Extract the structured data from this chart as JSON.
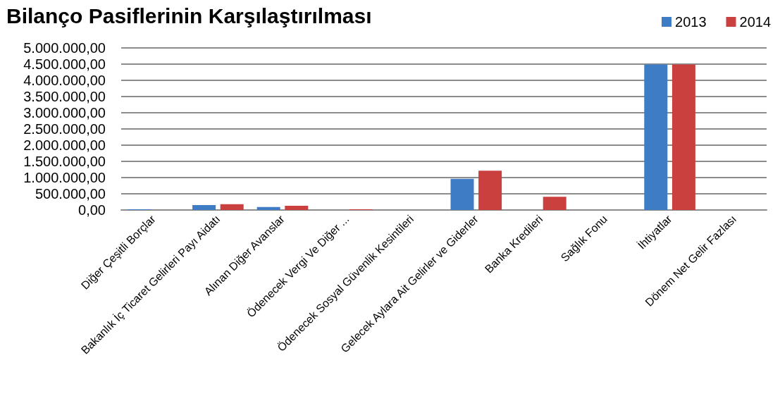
{
  "chart_data": {
    "type": "bar",
    "title": "Bilanço Pasiflerinin Karşılaştırılması",
    "categories": [
      "Diğer Çeşitli Borçlar",
      "Bakanlık İç Ticaret Gelirleri Payı Aidatı",
      "Alınan Diğer Avanslar",
      "Ödenecek Vergi Ve Diğer ...",
      "Ödenecek Sosyal Güvenlik Kesintileri",
      "Gelecek Aylara Ait Gelirler ve Giderler",
      "Banka Kredileri",
      "Sağlık Fonu",
      "İhtiyatlar",
      "Dönem Net Gelir Fazlası"
    ],
    "series": [
      {
        "name": "2013",
        "color": "#3f7cc6",
        "values": [
          20000,
          150000,
          90000,
          0,
          0,
          960000,
          0,
          0,
          4490000,
          0
        ]
      },
      {
        "name": "2014",
        "color": "#c9403e",
        "values": [
          0,
          180000,
          130000,
          20000,
          0,
          1210000,
          410000,
          0,
          4490000,
          0
        ]
      }
    ],
    "ylim": [
      0,
      5000000
    ],
    "yticks": [
      {
        "value": 0,
        "label": "0,00"
      },
      {
        "value": 500000,
        "label": "500.000,00"
      },
      {
        "value": 1000000,
        "label": "1.000.000,00"
      },
      {
        "value": 1500000,
        "label": "1.500.000,00"
      },
      {
        "value": 2000000,
        "label": "2.000.000,00"
      },
      {
        "value": 2500000,
        "label": "2.500.000,00"
      },
      {
        "value": 3000000,
        "label": "3.000.000,00"
      },
      {
        "value": 3500000,
        "label": "3.500.000,00"
      },
      {
        "value": 4000000,
        "label": "4.000.000,00"
      },
      {
        "value": 4500000,
        "label": "4.500.000,00"
      },
      {
        "value": 5000000,
        "label": "5.000.000,00"
      }
    ],
    "grid": "y",
    "legend": "top right"
  }
}
